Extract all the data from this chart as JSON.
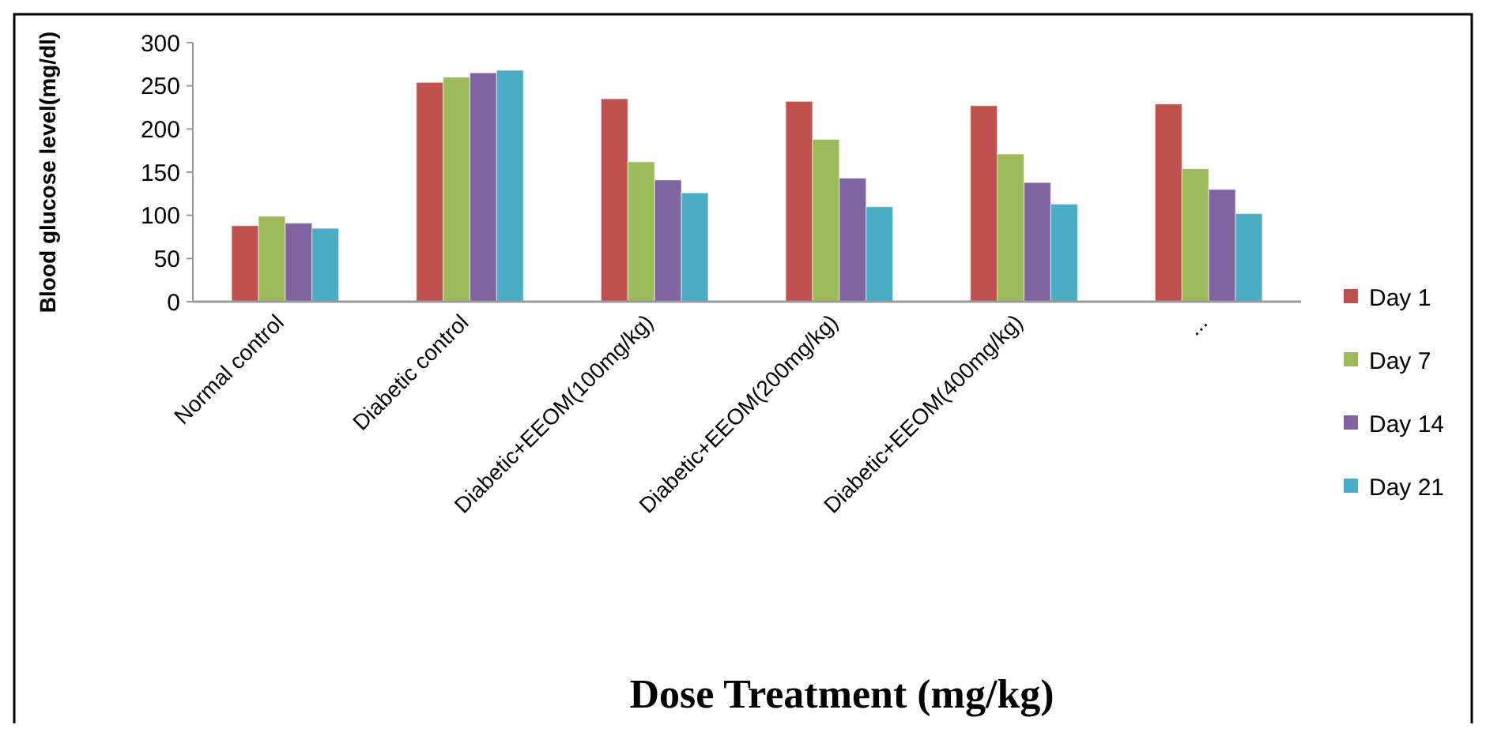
{
  "chart_data": {
    "type": "bar",
    "xlabel": "Dose Treatment (mg/kg)",
    "ylabel": "Blood glucose level(mg/dl)",
    "categories": [
      "Normal control",
      "Diabetic control",
      "Diabetic+EEOM(100mg/kg)",
      "Diabetic+EEOM(200mg/kg)",
      "Diabetic+EEOM(400mg/kg)",
      "..."
    ],
    "series": [
      {
        "name": "Day 1",
        "color": "#c0504d",
        "values": [
          88,
          254,
          235,
          232,
          227,
          229
        ]
      },
      {
        "name": "Day 7",
        "color": "#9bbb59",
        "values": [
          99,
          260,
          162,
          188,
          171,
          154
        ]
      },
      {
        "name": "Day 14",
        "color": "#8064a2",
        "values": [
          91,
          265,
          141,
          143,
          138,
          130
        ]
      },
      {
        "name": "Day 21",
        "color": "#4bacc6",
        "values": [
          85,
          268,
          126,
          110,
          113,
          102
        ]
      }
    ],
    "ylim": [
      0,
      300
    ],
    "yticks": [
      0,
      50,
      100,
      150,
      200,
      250,
      300
    ],
    "grid": false,
    "legend": "right"
  }
}
